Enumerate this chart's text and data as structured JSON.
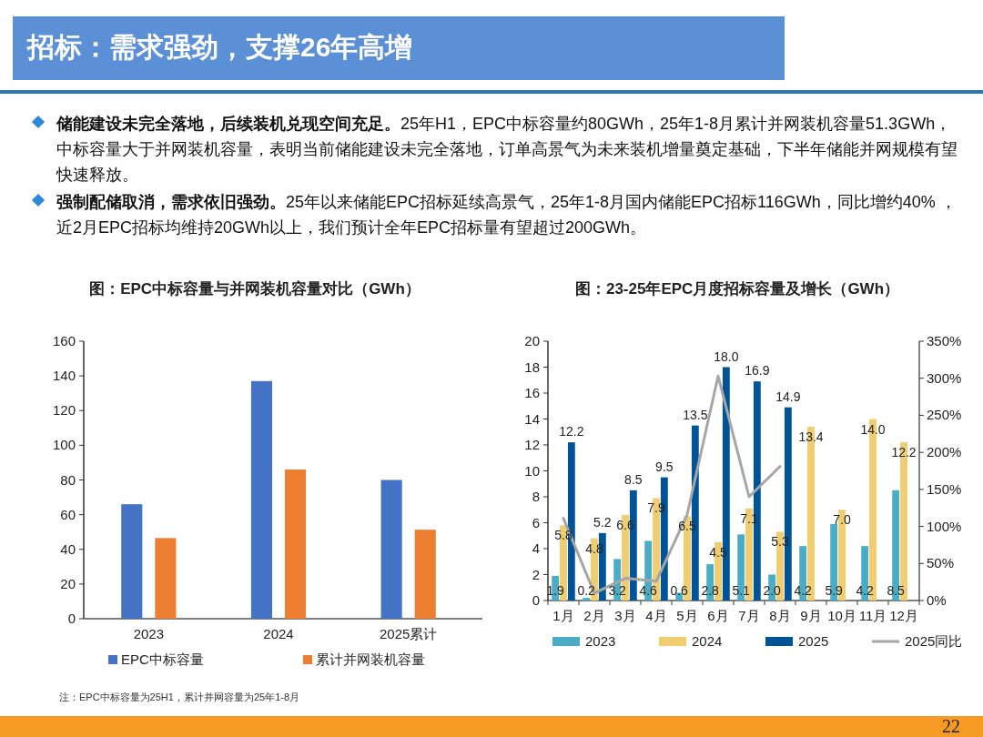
{
  "chart_data": [
    {
      "type": "other",
      "title": "招标：需求强劲，支撑26年高增",
      "annotations": [
        "储能建设未完全落地，后续装机兑现空间充足。25年H1，EPC中标容量约80GWh，25年1-8月累计并网装机容量51.3GWh，中标容量大于并网装机容量，表明当前储能建设未完全落地，订单高景气为未来装机增量奠定基础，下半年储能并网规模有望快速释放。",
        "强制配储取消，需求依旧强劲。25年以来储能EPC招标延续高景气，25年1-8月国内储能EPC招标116GWh，同比增约40% ，近2月EPC招标均维持20GWh以上，我们预计全年EPC招标量有望超过200GWh。",
        "22"
      ]
    },
    {
      "type": "bar",
      "title": "图：EPC中标容量与并网装机容量对比（GWh）",
      "categories": [
        "2023",
        "2024",
        "2025累计"
      ],
      "series": [
        {
          "name": "EPC中标容量",
          "color": "#4472c4",
          "values": [
            66,
            137,
            80
          ]
        },
        {
          "name": "累计并网装机容量",
          "color": "#ed7d31",
          "values": [
            46.5,
            86,
            51.3
          ]
        }
      ],
      "ylim": [
        0,
        160
      ],
      "yticks": [
        0,
        20,
        40,
        60,
        80,
        100,
        120,
        140,
        160
      ],
      "legend": "bottom",
      "annotations": [
        "注：EPC中标容量为25H1，累计并网容量为25年1-8月"
      ]
    },
    {
      "type": "bar",
      "title": "图：23-25年EPC月度招标容量及增长（GWh）",
      "categories": [
        "1月",
        "2月",
        "3月",
        "4月",
        "5月",
        "6月",
        "7月",
        "8月",
        "9月",
        "10月",
        "11月",
        "12月"
      ],
      "series": [
        {
          "name": "2023",
          "color": "#4bacc6",
          "values": [
            1.9,
            0.2,
            3.2,
            4.6,
            0.6,
            2.8,
            5.1,
            2.0,
            4.2,
            5.9,
            4.2,
            8.5
          ],
          "value_labels": [
            "1.9",
            "0.2",
            "3.2",
            "4.6",
            "0.6",
            "2.8",
            "5.1",
            "2.0",
            "4.2",
            "5.9",
            "4.2",
            "8.5"
          ]
        },
        {
          "name": "2024",
          "color": "#f0cd6e",
          "values": [
            5.8,
            4.8,
            6.6,
            7.9,
            6.5,
            4.5,
            7.1,
            5.3,
            13.4,
            7.0,
            14.0,
            12.2
          ],
          "value_labels": [
            "5.8",
            "4.8",
            "6.6",
            "7.9",
            "6.5",
            "4.5",
            "7.1",
            "5.3",
            "13.4",
            "7.0",
            "14.0",
            "12.2"
          ]
        },
        {
          "name": "2025",
          "color": "#005496",
          "values": [
            12.2,
            5.2,
            8.5,
            9.5,
            13.5,
            18.0,
            16.9,
            14.9,
            null,
            null,
            null,
            null
          ],
          "value_labels": [
            "12.2",
            "5.2",
            "8.5",
            "9.5",
            "13.5",
            "18.0",
            "16.9",
            "14.9",
            null,
            null,
            null,
            null
          ]
        },
        {
          "name": "2025同比",
          "type": "line",
          "axis": "y2",
          "color": "#a6a6a6",
          "values": [
            111,
            10,
            30,
            26,
            116,
            303,
            140,
            181,
            null,
            null,
            null,
            null
          ]
        }
      ],
      "ylim": [
        0,
        20
      ],
      "yticks": [
        0,
        2,
        4,
        6,
        8,
        10,
        12,
        14,
        16,
        18,
        20
      ],
      "y2lim": [
        0,
        350
      ],
      "y2ticks": [
        {
          "value": 0,
          "label": "0%"
        },
        {
          "value": 50,
          "label": "50%"
        },
        {
          "value": 100,
          "label": "100%"
        },
        {
          "value": 150,
          "label": "150%"
        },
        {
          "value": 200,
          "label": "200%"
        },
        {
          "value": 250,
          "label": "250%"
        },
        {
          "value": 300,
          "label": "300%"
        },
        {
          "value": 350,
          "label": "350%"
        }
      ],
      "legend": "bottom"
    }
  ]
}
